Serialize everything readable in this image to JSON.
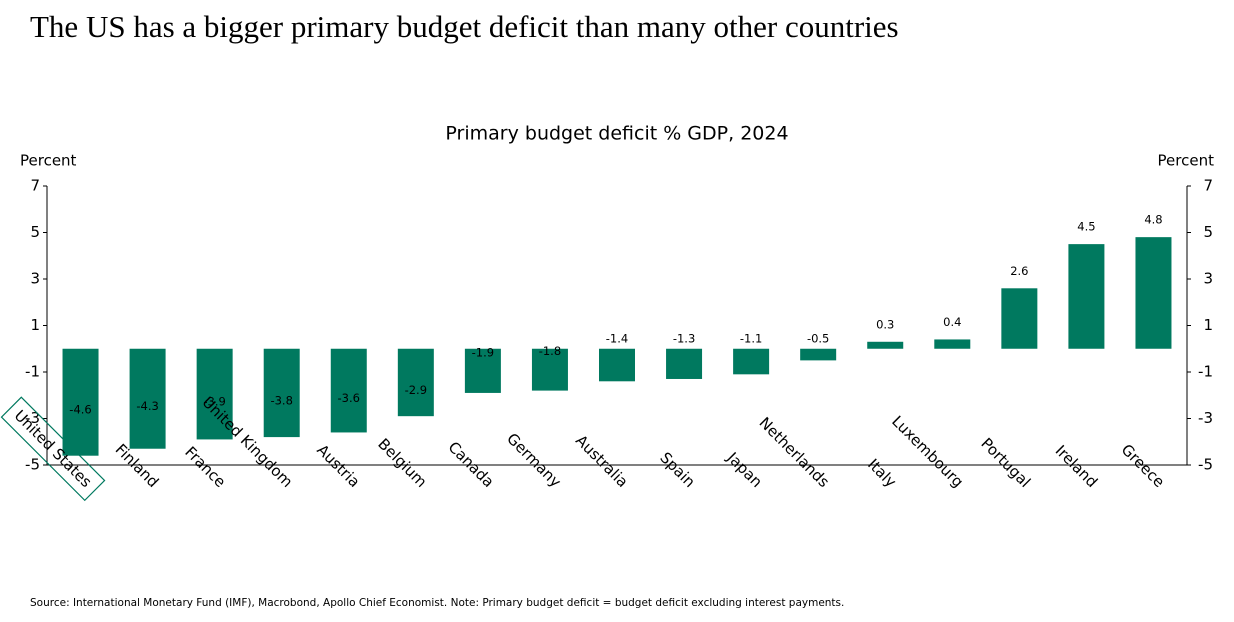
{
  "chart_data": {
    "type": "bar",
    "title": "The US has a bigger primary budget deficit than many other countries",
    "subtitle": "Primary budget deficit % GDP, 2024",
    "ylabel": "Percent",
    "y2label": "Percent",
    "categories": [
      "United States",
      "Finland",
      "France",
      "United Kingdom",
      "Austria",
      "Belgium",
      "Canada",
      "Germany",
      "Australia",
      "Spain",
      "Japan",
      "Netherlands",
      "Italy",
      "Luxembourg",
      "Portugal",
      "Ireland",
      "Greece"
    ],
    "values": [
      -4.6,
      -4.3,
      -3.9,
      -3.8,
      -3.6,
      -2.9,
      -1.9,
      -1.8,
      -1.4,
      -1.3,
      -1.1,
      -0.5,
      0.3,
      0.4,
      2.6,
      4.5,
      4.8
    ],
    "color": "#00795f",
    "highlight": "United States",
    "ylim": [
      -5,
      7
    ],
    "yticks": [
      -5,
      -3,
      -1,
      1,
      3,
      5,
      7
    ],
    "y2lim": [
      -5,
      7
    ],
    "y2ticks": [
      -5,
      -3,
      -1,
      1,
      3,
      5,
      7
    ],
    "source": "Source: International Monetary Fund (IMF), Macrobond, Apollo Chief Economist. Note: Primary budget deficit = budget deficit excluding interest payments."
  }
}
